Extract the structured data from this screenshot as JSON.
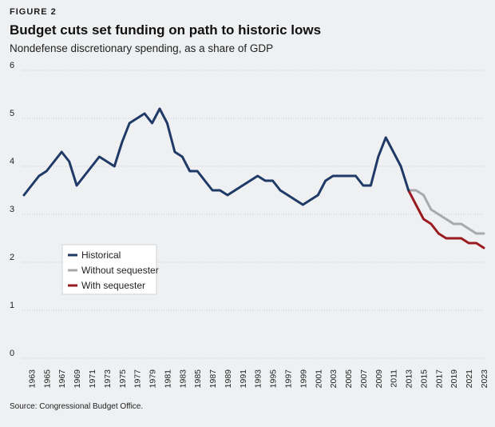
{
  "header": {
    "figure_label": "FIGURE 2",
    "title": "Budget cuts set funding on path to historic lows",
    "subtitle": "Nondefense discretionary spending, as a share of GDP"
  },
  "footer": {
    "source": "Source: Congressional Budget Office."
  },
  "chart_data": {
    "type": "line",
    "title": "Budget cuts set funding on path to historic lows",
    "ylabel": "",
    "xlabel": "",
    "ylim": [
      0,
      6
    ],
    "yticks": [
      0,
      1,
      2,
      3,
      4,
      5,
      6
    ],
    "xlim": [
      1962,
      2023
    ],
    "xticks": [
      1963,
      1965,
      1967,
      1969,
      1971,
      1973,
      1975,
      1977,
      1979,
      1981,
      1983,
      1985,
      1987,
      1989,
      1991,
      1993,
      1995,
      1997,
      1999,
      2001,
      2003,
      2005,
      2007,
      2009,
      2011,
      2013,
      2015,
      2017,
      2019,
      2021,
      2023
    ],
    "grid": "horizontal-dotted",
    "legend_position": "left-middle",
    "colors": {
      "historical": "#1f3a66",
      "without": "#a7a9ab",
      "with": "#9b1c20",
      "grid": "#c9ccd0",
      "text": "#222222"
    },
    "series": [
      {
        "name": "Historical",
        "color": "#1f3a66",
        "x": [
          1962,
          1963,
          1964,
          1965,
          1966,
          1967,
          1968,
          1969,
          1970,
          1971,
          1972,
          1973,
          1974,
          1975,
          1976,
          1977,
          1978,
          1979,
          1980,
          1981,
          1982,
          1983,
          1984,
          1985,
          1986,
          1987,
          1988,
          1989,
          1990,
          1991,
          1992,
          1993,
          1994,
          1995,
          1996,
          1997,
          1998,
          1999,
          2000,
          2001,
          2002,
          2003,
          2004,
          2005,
          2006,
          2007,
          2008,
          2009,
          2010,
          2011,
          2012,
          2013
        ],
        "values": [
          3.4,
          3.6,
          3.8,
          3.9,
          4.1,
          4.3,
          4.1,
          3.6,
          3.8,
          4.0,
          4.2,
          4.1,
          4.0,
          4.5,
          4.9,
          5.0,
          5.1,
          4.9,
          5.2,
          4.9,
          4.3,
          4.2,
          3.9,
          3.9,
          3.7,
          3.5,
          3.5,
          3.4,
          3.5,
          3.6,
          3.7,
          3.8,
          3.7,
          3.7,
          3.5,
          3.4,
          3.3,
          3.2,
          3.3,
          3.4,
          3.7,
          3.8,
          3.8,
          3.8,
          3.8,
          3.6,
          3.6,
          4.2,
          4.6,
          4.3,
          4.0,
          3.5
        ]
      },
      {
        "name": "Without sequester",
        "color": "#a7a9ab",
        "x": [
          2013,
          2014,
          2015,
          2016,
          2017,
          2018,
          2019,
          2020,
          2021,
          2022,
          2023
        ],
        "values": [
          3.5,
          3.5,
          3.4,
          3.1,
          3.0,
          2.9,
          2.8,
          2.8,
          2.7,
          2.6,
          2.6
        ]
      },
      {
        "name": "With sequester",
        "color": "#9b1c20",
        "x": [
          2013,
          2014,
          2015,
          2016,
          2017,
          2018,
          2019,
          2020,
          2021,
          2022,
          2023
        ],
        "values": [
          3.5,
          3.2,
          2.9,
          2.8,
          2.6,
          2.5,
          2.5,
          2.5,
          2.4,
          2.4,
          2.3
        ]
      }
    ]
  }
}
